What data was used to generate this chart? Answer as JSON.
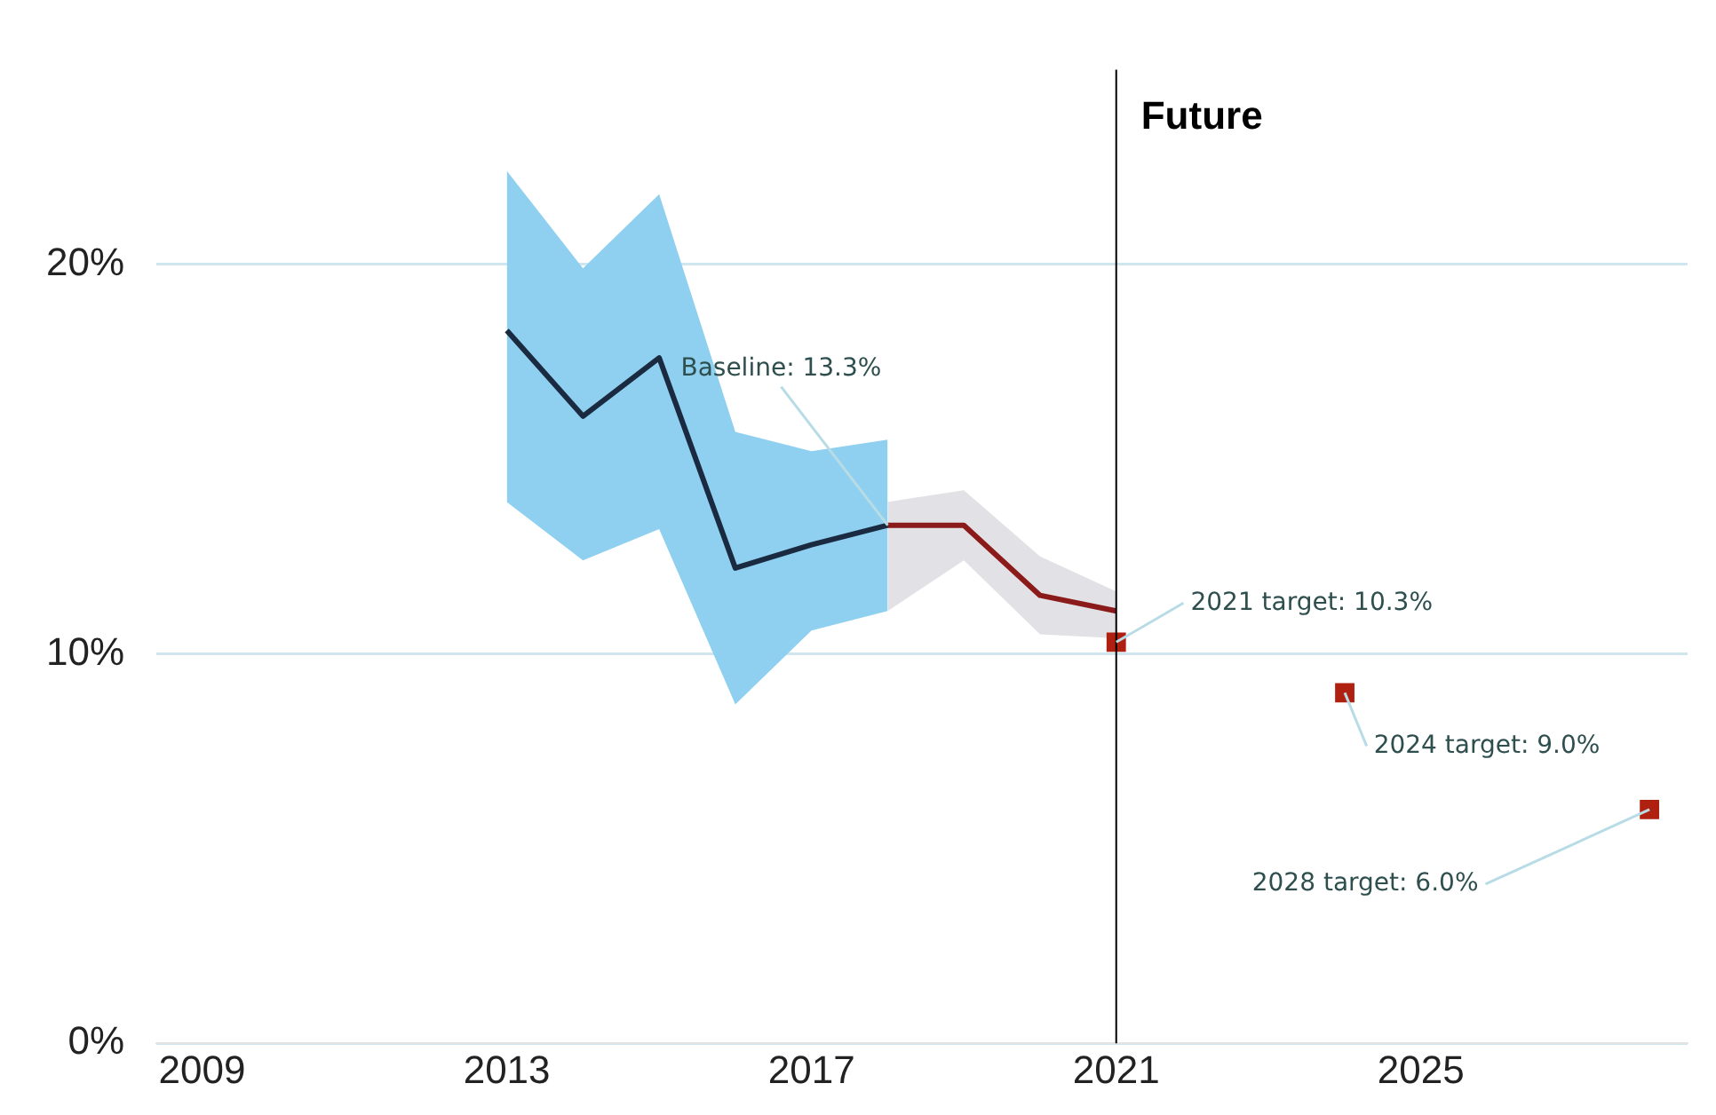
{
  "chart_data": {
    "type": "line",
    "xlim": [
      2008.4,
      2028.5
    ],
    "xticks": [
      2009,
      2013,
      2017,
      2021,
      2025
    ],
    "ylim": [
      0,
      25
    ],
    "yticks": [
      {
        "value": 0,
        "label": "0%"
      },
      {
        "value": 10,
        "label": "10%"
      },
      {
        "value": 20,
        "label": "20%"
      }
    ],
    "grid": "y",
    "marker": "none",
    "line_style": "solid",
    "series": [
      {
        "type": "line",
        "color": "#1a2a40",
        "x": [
          2013,
          2014,
          2015,
          2016,
          2017,
          2018
        ],
        "values": [
          18.3,
          16.1,
          17.6,
          12.2,
          12.8,
          13.3
        ],
        "lower": [
          13.9,
          12.4,
          13.2,
          8.7,
          10.6,
          11.1
        ],
        "upper": [
          22.4,
          19.9,
          21.8,
          15.7,
          15.2,
          15.5
        ]
      },
      {
        "type": "line",
        "color": "#8b1a1a",
        "x": [
          2018,
          2019,
          2020,
          2021
        ],
        "values": [
          13.3,
          13.3,
          11.5,
          11.1
        ],
        "lower": [
          11.1,
          12.4,
          10.5,
          10.4
        ],
        "upper": [
          13.9,
          14.2,
          12.5,
          11.6
        ]
      },
      {
        "type": "scatter",
        "marker": "square",
        "color": "#b02010",
        "x": [
          2021,
          2024,
          2028
        ],
        "values": [
          10.3,
          9.0,
          6.0
        ]
      }
    ],
    "ref_lines": [
      {
        "axis": "x",
        "value": 2021,
        "label": "Future",
        "color": "#000000"
      }
    ],
    "annotations": [
      {
        "text": "Baseline: 13.3%",
        "x": 2018,
        "y": 13.3
      },
      {
        "text": "2021 target: 10.3%",
        "x": 2021,
        "y": 10.3
      },
      {
        "text": "2024 target: 9.0%",
        "x": 2024,
        "y": 9.0
      },
      {
        "text": "2028 target: 6.0%",
        "x": 2028,
        "y": 6.0
      }
    ]
  }
}
